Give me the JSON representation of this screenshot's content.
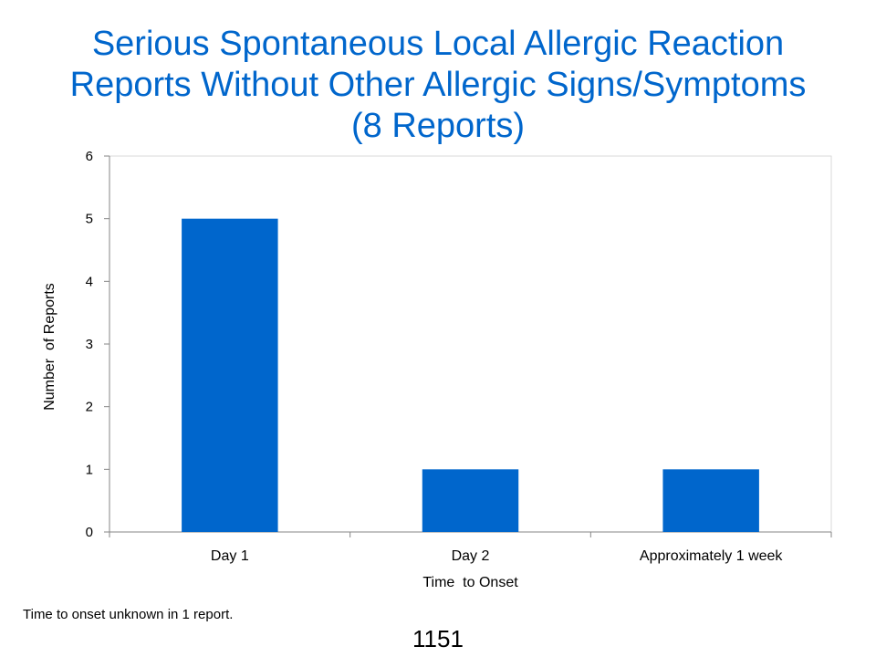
{
  "slide": {
    "title_lines": [
      "Serious Spontaneous Local Allergic Reaction",
      "Reports Without Other Allergic Signs/Symptoms",
      "(8 Reports)"
    ],
    "footnote": "Time to onset unknown in 1 report.",
    "page_number": "1151"
  },
  "chart_data": {
    "type": "bar",
    "categories": [
      "Day 1",
      "Day 2",
      "Approximately 1 week"
    ],
    "values": [
      5,
      1,
      1
    ],
    "xlabel": "Time  to Onset",
    "ylabel": "Number  of Reports",
    "ylim": [
      0,
      6
    ],
    "yticks": [
      0,
      1,
      2,
      3,
      4,
      5,
      6
    ],
    "grid": false,
    "legend": "none",
    "bar_color": "#0066cc"
  }
}
